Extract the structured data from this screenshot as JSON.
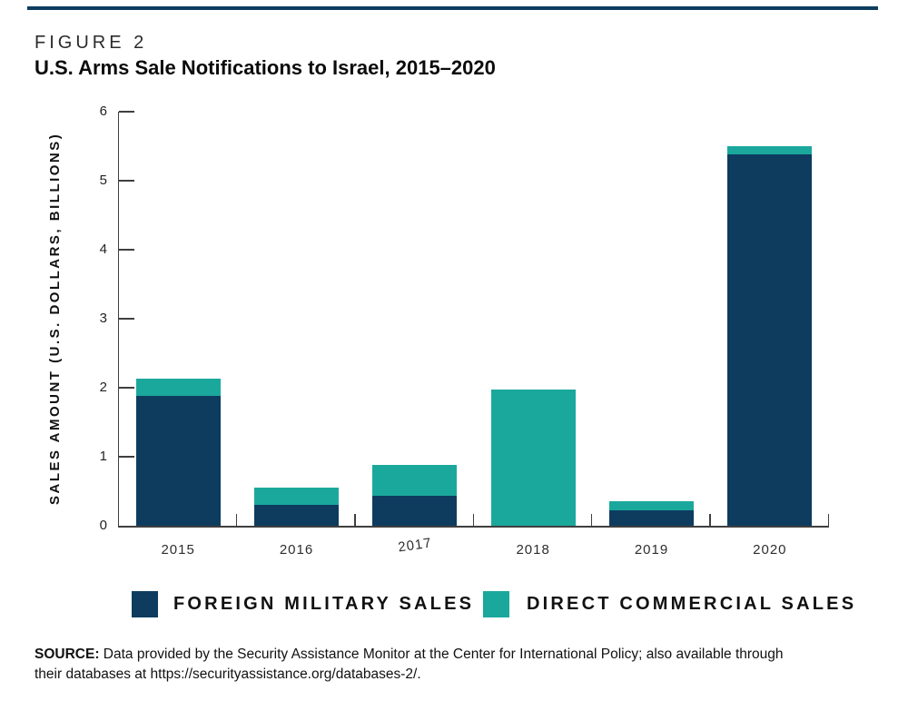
{
  "figure": {
    "label": "FIGURE 2",
    "title": "U.S. Arms Sale Notifications to Israel, 2015–2020"
  },
  "colors": {
    "navy": "#0d3c5f",
    "teal": "#1ba89c",
    "axis": "#3f3f3f",
    "top_rule": "#0d3c5f"
  },
  "chart_data": {
    "type": "bar",
    "stacked": true,
    "categories": [
      "2015",
      "2016",
      "2017",
      "2018",
      "2019",
      "2020"
    ],
    "series": [
      {
        "name": "FOREIGN MILITARY SALES",
        "color_key": "navy",
        "values": [
          1.88,
          0.3,
          0.44,
          0,
          0.22,
          5.38
        ]
      },
      {
        "name": "DIRECT COMMERCIAL SALES",
        "color_key": "teal",
        "values": [
          0.25,
          0.25,
          0.45,
          1.97,
          0.13,
          0.12
        ]
      }
    ],
    "title": "U.S. Arms Sale Notifications to Israel, 2015–2020",
    "xlabel": "",
    "ylabel": "SALES AMOUNT (U.S. DOLLARS, BILLIONS)",
    "ylim": [
      0,
      6
    ],
    "yticks": [
      0,
      1,
      2,
      3,
      4,
      5,
      6
    ],
    "grid": false,
    "legend_position": "bottom",
    "tick_direction": "in"
  },
  "source": {
    "label": "SOURCE:",
    "lines": [
      "Data provided by the Security Assistance Monitor at the Center for International Policy; also available through",
      "their databases at https://securityassistance.org/databases-2/."
    ]
  }
}
